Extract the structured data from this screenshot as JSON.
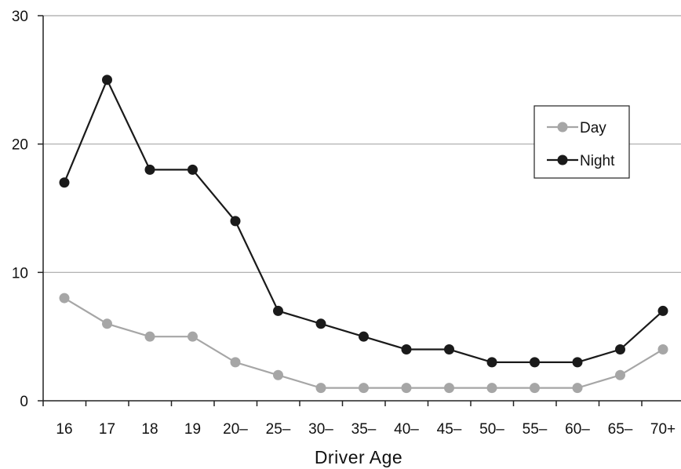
{
  "chart_data": {
    "type": "line",
    "title": "",
    "xlabel": "Driver Age",
    "ylabel": "",
    "categories": [
      "16",
      "17",
      "18",
      "19",
      "20–",
      "25–",
      "30–",
      "35–",
      "40–",
      "45–",
      "50–",
      "55–",
      "60–",
      "65–",
      "70+"
    ],
    "ylim": [
      0,
      30
    ],
    "yticks": [
      0,
      10,
      20,
      30
    ],
    "grid": true,
    "legend_position": "right",
    "series": [
      {
        "name": "Day",
        "color": "#a6a6a6",
        "values": [
          8,
          6,
          5,
          5,
          3,
          2,
          1,
          1,
          1,
          1,
          1,
          1,
          1,
          2,
          4
        ]
      },
      {
        "name": "Night",
        "color": "#1a1a1a",
        "values": [
          17,
          25,
          18,
          18,
          14,
          7,
          6,
          5,
          4,
          4,
          3,
          3,
          3,
          4,
          7
        ]
      }
    ]
  }
}
